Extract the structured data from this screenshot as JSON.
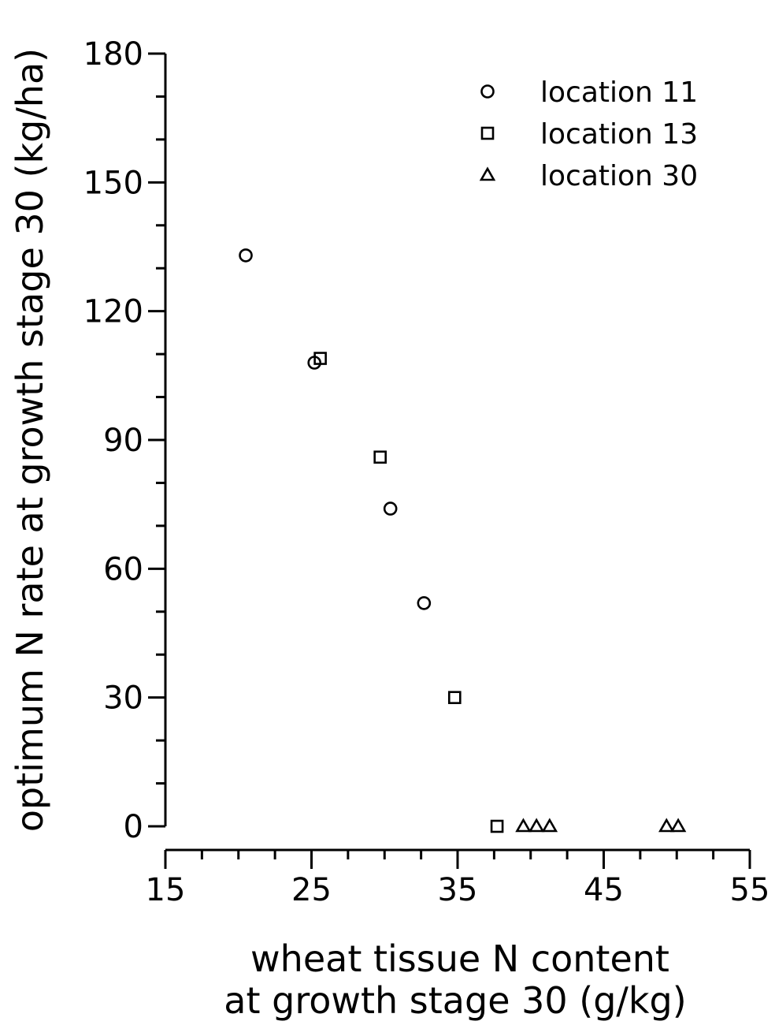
{
  "chart_data": {
    "type": "scatter",
    "title": "",
    "xlabel": [
      "wheat tissue N content",
      "at growth stage 30 (g/kg)"
    ],
    "ylabel": "optimum N rate at growth stage 30 (kg/ha)",
    "xlim": [
      15,
      55
    ],
    "ylim": [
      0,
      180
    ],
    "x_ticks": [
      15,
      25,
      35,
      45,
      55
    ],
    "x_tick_labels": [
      "15",
      "25",
      "35",
      "45",
      "55"
    ],
    "y_ticks": [
      0,
      30,
      60,
      90,
      120,
      150,
      180
    ],
    "y_tick_labels": [
      "0",
      "30",
      "60",
      "90",
      "120",
      "150",
      "180"
    ],
    "x_minor_step": 2.5,
    "y_minor_step": 10,
    "grid": false,
    "legend_position": "top-right",
    "series": [
      {
        "name": "location 11",
        "marker": "circle",
        "points": [
          {
            "x": 20.5,
            "y": 133
          },
          {
            "x": 25.2,
            "y": 108
          },
          {
            "x": 30.4,
            "y": 74
          },
          {
            "x": 32.7,
            "y": 52
          }
        ]
      },
      {
        "name": "location 13",
        "marker": "square",
        "points": [
          {
            "x": 25.6,
            "y": 109
          },
          {
            "x": 29.7,
            "y": 86
          },
          {
            "x": 34.8,
            "y": 30
          },
          {
            "x": 37.7,
            "y": 0
          }
        ]
      },
      {
        "name": "location 30",
        "marker": "triangle",
        "points": [
          {
            "x": 39.5,
            "y": 0
          },
          {
            "x": 40.4,
            "y": 0
          },
          {
            "x": 41.3,
            "y": 0
          },
          {
            "x": 49.3,
            "y": 0
          },
          {
            "x": 50.1,
            "y": 0
          }
        ]
      }
    ]
  }
}
